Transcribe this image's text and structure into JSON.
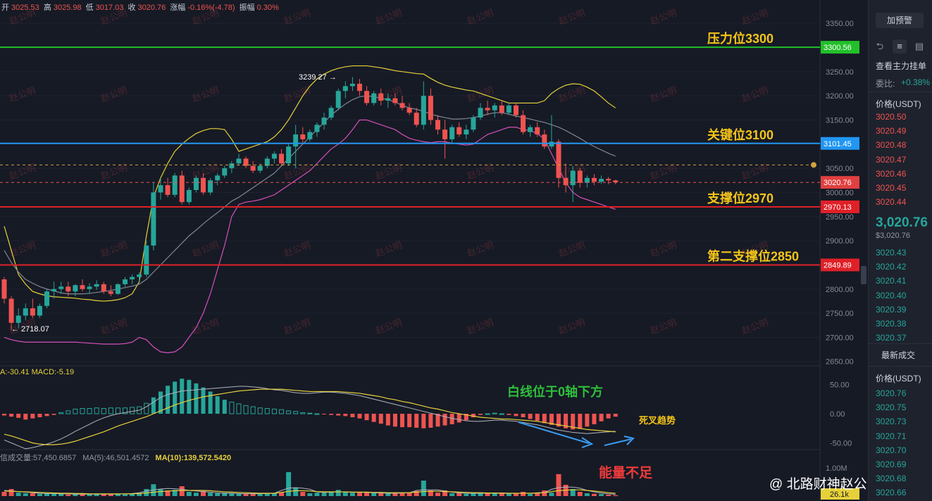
{
  "ohlc": {
    "open_label": "开",
    "open": "3025.53",
    "high_label": "高",
    "high": "3025.98",
    "low_label": "低",
    "low": "3017.03",
    "close_label": "收",
    "close": "3020.76",
    "change_label": "涨幅",
    "change": "-0.16%(-4.78)",
    "amp_label": "振幅",
    "amp": "0.30%"
  },
  "watermark": "赵公明",
  "credit": "@ 北路财神赵公明",
  "annotations": {
    "resistance": "压力位3300",
    "key": "关键位3100",
    "support": "支撑位2970",
    "support2": "第二支撑位2850",
    "white_line": "白线位于0轴下方",
    "dead_cross": "死叉趋势",
    "low_volume": "能量不足",
    "peak": "3239.27 →",
    "trough": "← 2718.07"
  },
  "colors": {
    "up": "#26a69a",
    "down": "#ef5350",
    "resistance_line": "#22c02a",
    "key_line": "#2196f3",
    "support_line": "#e02027",
    "boll_upper": "#e6d13a",
    "boll_mid": "#7f8594",
    "boll_lower": "#d450b9",
    "annotation_text": "#f5c518",
    "annotation_green": "#2fbf3b",
    "annotation_red": "#ef3b3b"
  },
  "indicators": {
    "macd_text": "A:-30.41  MACD:-5.19",
    "volume_text": "信成交量:57,450.6857",
    "ma5_text": "MA(5):46,501.4572",
    "ma10_text": "MA(10):139,572.5420"
  },
  "right_panel": {
    "button": "加预警",
    "main_orders": "查看主力挂单",
    "ratio_label": "委比:",
    "ratio_value": "+0.38%",
    "price_header": "价格(USDT)",
    "asks": [
      "3020.50",
      "3020.49",
      "3020.48",
      "3020.47",
      "3020.46",
      "3020.45",
      "3020.44"
    ],
    "last_price": "3,020.76",
    "last_price_sub": "$3,020.76",
    "bids": [
      "3020.43",
      "3020.42",
      "3020.41",
      "3020.40",
      "3020.39",
      "3020.38",
      "3020.37"
    ],
    "latest_trades": "最新成交",
    "trade_header": "价格(USDT)",
    "trades": [
      "3020.76",
      "3020.75",
      "3020.73",
      "3020.71",
      "3020.70",
      "3020.69",
      "3020.68",
      "3020.66"
    ]
  },
  "chart_data": {
    "type": "candlestick",
    "symbol_quote": "USDT",
    "price_axis": {
      "ticks": [
        3350,
        3300,
        3250,
        3200,
        3150,
        3100,
        3050,
        3000,
        2950,
        2900,
        2850,
        2800,
        2750,
        2700,
        2650
      ]
    },
    "macd_axis": {
      "ticks": [
        "50.00",
        "0.00",
        "-50.00"
      ]
    },
    "volume_axis": {
      "ticks": [
        "1.00M"
      ],
      "last_volume": "26.1k"
    },
    "levels": [
      {
        "label_key": "resistance",
        "value": 3300.56,
        "tag": "3300.56"
      },
      {
        "label_key": "key",
        "value": 3101.45,
        "tag": "3101.45"
      },
      {
        "label_key": "support",
        "value": 2970.13,
        "tag": "2970.13"
      },
      {
        "label_key": "support2",
        "value": 2849.89,
        "tag": "2849.89"
      }
    ],
    "current_price": {
      "value": 3020.76,
      "tag": "3020.76"
    },
    "alert_level": 3057,
    "peak_value": 3239.27,
    "trough_value": 2718.07,
    "candles": [
      [
        2820,
        2825,
        2770,
        2780
      ],
      [
        2780,
        2785,
        2715,
        2730
      ],
      [
        2730,
        2760,
        2718,
        2745
      ],
      [
        2745,
        2770,
        2735,
        2760
      ],
      [
        2760,
        2780,
        2740,
        2745
      ],
      [
        2745,
        2770,
        2740,
        2765
      ],
      [
        2765,
        2800,
        2760,
        2795
      ],
      [
        2795,
        2815,
        2780,
        2800
      ],
      [
        2800,
        2815,
        2790,
        2805
      ],
      [
        2805,
        2815,
        2785,
        2795
      ],
      [
        2795,
        2810,
        2785,
        2808
      ],
      [
        2808,
        2820,
        2795,
        2800
      ],
      [
        2800,
        2812,
        2790,
        2805
      ],
      [
        2805,
        2818,
        2798,
        2810
      ],
      [
        2810,
        2815,
        2790,
        2795
      ],
      [
        2795,
        2808,
        2785,
        2790
      ],
      [
        2790,
        2812,
        2788,
        2810
      ],
      [
        2810,
        2825,
        2805,
        2820
      ],
      [
        2820,
        2830,
        2810,
        2825
      ],
      [
        2825,
        2835,
        2815,
        2830
      ],
      [
        2830,
        2900,
        2825,
        2890
      ],
      [
        2890,
        3020,
        2880,
        3000
      ],
      [
        3000,
        3030,
        2985,
        3015
      ],
      [
        3015,
        3030,
        2990,
        2995
      ],
      [
        2995,
        3040,
        2990,
        3035
      ],
      [
        3035,
        3045,
        2975,
        2980
      ],
      [
        2980,
        3010,
        2975,
        3005
      ],
      [
        3005,
        3035,
        3000,
        3030
      ],
      [
        3030,
        3040,
        2995,
        3000
      ],
      [
        3000,
        3030,
        2995,
        3025
      ],
      [
        3025,
        3040,
        3015,
        3035
      ],
      [
        3035,
        3055,
        3030,
        3050
      ],
      [
        3050,
        3065,
        3040,
        3060
      ],
      [
        3060,
        3080,
        3055,
        3070
      ],
      [
        3070,
        3075,
        3050,
        3055
      ],
      [
        3055,
        3065,
        3040,
        3045
      ],
      [
        3045,
        3060,
        3040,
        3055
      ],
      [
        3055,
        3075,
        3050,
        3070
      ],
      [
        3070,
        3085,
        3060,
        3080
      ],
      [
        3080,
        3090,
        3055,
        3060
      ],
      [
        3060,
        3100,
        3055,
        3095
      ],
      [
        3095,
        3140,
        3050,
        3120
      ],
      [
        3120,
        3135,
        3100,
        3110
      ],
      [
        3110,
        3130,
        3105,
        3125
      ],
      [
        3125,
        3145,
        3115,
        3140
      ],
      [
        3140,
        3165,
        3130,
        3155
      ],
      [
        3155,
        3180,
        3150,
        3175
      ],
      [
        3175,
        3215,
        3170,
        3210
      ],
      [
        3210,
        3230,
        3195,
        3220
      ],
      [
        3220,
        3239,
        3210,
        3225
      ],
      [
        3225,
        3235,
        3200,
        3210
      ],
      [
        3210,
        3220,
        3180,
        3185
      ],
      [
        3185,
        3210,
        3180,
        3205
      ],
      [
        3205,
        3215,
        3180,
        3190
      ],
      [
        3190,
        3205,
        3175,
        3195
      ],
      [
        3195,
        3205,
        3180,
        3185
      ],
      [
        3185,
        3200,
        3170,
        3175
      ],
      [
        3175,
        3185,
        3160,
        3165
      ],
      [
        3165,
        3175,
        3135,
        3140
      ],
      [
        3140,
        3230,
        3130,
        3200
      ],
      [
        3200,
        3215,
        3140,
        3150
      ],
      [
        3150,
        3160,
        3120,
        3130
      ],
      [
        3130,
        3150,
        3070,
        3110
      ],
      [
        3110,
        3140,
        3100,
        3135
      ],
      [
        3135,
        3145,
        3115,
        3120
      ],
      [
        3120,
        3140,
        3110,
        3130
      ],
      [
        3130,
        3160,
        3125,
        3155
      ],
      [
        3155,
        3185,
        3150,
        3175
      ],
      [
        3175,
        3190,
        3160,
        3170
      ],
      [
        3170,
        3185,
        3155,
        3180
      ],
      [
        3180,
        3190,
        3160,
        3165
      ],
      [
        3165,
        3185,
        3160,
        3180
      ],
      [
        3180,
        3185,
        3155,
        3160
      ],
      [
        3160,
        3170,
        3120,
        3125
      ],
      [
        3125,
        3140,
        3115,
        3135
      ],
      [
        3135,
        3145,
        3115,
        3120
      ],
      [
        3120,
        3130,
        3090,
        3095
      ],
      [
        3095,
        3160,
        3090,
        3105
      ],
      [
        3105,
        3110,
        3010,
        3030
      ],
      [
        3030,
        3060,
        3000,
        3015
      ],
      [
        3015,
        3055,
        2980,
        3045
      ],
      [
        3045,
        3050,
        3010,
        3020
      ],
      [
        3020,
        3035,
        3010,
        3030
      ],
      [
        3030,
        3038,
        3015,
        3022
      ],
      [
        3022,
        3035,
        3018,
        3028
      ],
      [
        3028,
        3032,
        3017,
        3025
      ],
      [
        3025,
        3026,
        3017,
        3021
      ]
    ],
    "bollinger": {
      "upper": [
        2930,
        2880,
        2830,
        2810,
        2795,
        2790,
        2786,
        2784,
        2783,
        2782,
        2781,
        2779,
        2778,
        2776,
        2775,
        2776,
        2778,
        2782,
        2790,
        2815,
        2910,
        2990,
        3030,
        3060,
        3085,
        3100,
        3112,
        3122,
        3128,
        3132,
        3132,
        3130,
        3110,
        3085,
        3090,
        3095,
        3100,
        3105,
        3115,
        3130,
        3150,
        3175,
        3200,
        3220,
        3235,
        3245,
        3252,
        3257,
        3260,
        3262,
        3262,
        3262,
        3260,
        3258,
        3255,
        3252,
        3250,
        3248,
        3246,
        3245,
        3236,
        3228,
        3222,
        3218,
        3215,
        3212,
        3210,
        3205,
        3200,
        3195,
        3190,
        3185,
        3185,
        3185,
        3185,
        3185,
        3190,
        3205,
        3215,
        3222,
        3225,
        3224,
        3218,
        3210,
        3198,
        3185,
        3175
      ],
      "middle": [
        2880,
        2855,
        2835,
        2820,
        2812,
        2805,
        2800,
        2796,
        2792,
        2790,
        2790,
        2790,
        2791,
        2793,
        2795,
        2797,
        2800,
        2803,
        2806,
        2810,
        2820,
        2835,
        2850,
        2865,
        2880,
        2895,
        2910,
        2922,
        2935,
        2947,
        2958,
        2970,
        2982,
        2990,
        3000,
        3010,
        3020,
        3030,
        3040,
        3055,
        3070,
        3085,
        3100,
        3115,
        3130,
        3145,
        3160,
        3172,
        3183,
        3192,
        3198,
        3200,
        3198,
        3195,
        3192,
        3187,
        3180,
        3175,
        3172,
        3168,
        3162,
        3158,
        3155,
        3152,
        3152,
        3153,
        3155,
        3158,
        3162,
        3165,
        3165,
        3162,
        3158,
        3155,
        3152,
        3148,
        3145,
        3140,
        3135,
        3128,
        3120,
        3112,
        3103,
        3095,
        3088,
        3081,
        3075
      ],
      "lower": [
        2700,
        2695,
        2692,
        2690,
        2690,
        2690,
        2690,
        2690,
        2690,
        2690,
        2690,
        2689,
        2688,
        2687,
        2686,
        2686,
        2686,
        2687,
        2690,
        2700,
        2695,
        2680,
        2670,
        2668,
        2670,
        2680,
        2700,
        2720,
        2750,
        2790,
        2840,
        2890,
        2950,
        2975,
        2980,
        2982,
        2985,
        2990,
        2995,
        3005,
        3015,
        3025,
        3035,
        3045,
        3060,
        3075,
        3090,
        3100,
        3112,
        3130,
        3150,
        3150,
        3145,
        3140,
        3135,
        3130,
        3120,
        3112,
        3108,
        3105,
        3103,
        3105,
        3105,
        3102,
        3100,
        3098,
        3100,
        3110,
        3120,
        3125,
        3130,
        3135,
        3135,
        3130,
        3128,
        3122,
        3110,
        3080,
        3050,
        3020,
        3000,
        2990,
        2985,
        2980,
        2975,
        2970,
        2965
      ]
    },
    "macd": {
      "hist": [
        -3,
        -5,
        -7,
        -10,
        -8,
        -6,
        -4,
        -2,
        2,
        5,
        8,
        9,
        9,
        10,
        9,
        10,
        10,
        10,
        11,
        12,
        18,
        28,
        38,
        48,
        55,
        60,
        58,
        52,
        45,
        38,
        30,
        24,
        20,
        17,
        14,
        12,
        10,
        9,
        8,
        7,
        5,
        4,
        2,
        1,
        0,
        -1,
        -2,
        -3,
        -4,
        -6,
        -8,
        -11,
        -14,
        -17,
        -20,
        -22,
        -23,
        -23,
        -24,
        -25,
        -24,
        -22,
        -20,
        -18,
        -15,
        -11,
        -6,
        -2,
        0,
        1,
        0,
        -2,
        -4,
        -6,
        -9,
        -12,
        -16,
        -19,
        -22,
        -25,
        -27,
        -26,
        -22,
        -18,
        -13,
        -8,
        -5
      ],
      "dif": [
        -45,
        -50,
        -55,
        -60,
        -58,
        -55,
        -52,
        -48,
        -43,
        -37,
        -30,
        -24,
        -18,
        -12,
        -7,
        -3,
        0,
        2,
        4,
        6,
        12,
        20,
        28,
        33,
        36,
        39,
        40,
        41,
        42,
        43,
        44,
        45,
        46,
        47,
        47,
        46,
        45,
        43,
        41,
        40,
        38,
        36,
        35,
        35,
        36,
        37,
        37,
        36,
        35,
        33,
        31,
        28,
        25,
        22,
        19,
        16,
        13,
        10,
        7,
        4,
        1,
        -2,
        -5,
        -8,
        -10,
        -12,
        -13,
        -13,
        -12,
        -11,
        -11,
        -12,
        -13,
        -15,
        -17,
        -19,
        -22,
        -25,
        -28,
        -30,
        -32,
        -33,
        -34,
        -33,
        -32,
        -31,
        -30
      ],
      "dea": [
        -35,
        -38,
        -42,
        -46,
        -50,
        -52,
        -53,
        -53,
        -52,
        -50,
        -47,
        -43,
        -39,
        -35,
        -31,
        -26,
        -21,
        -17,
        -13,
        -9,
        -5,
        0,
        5,
        10,
        15,
        19,
        23,
        26,
        29,
        31,
        33,
        35,
        37,
        39,
        40,
        41,
        42,
        42,
        42,
        42,
        41,
        40,
        39,
        38,
        38,
        38,
        38,
        38,
        37,
        36,
        35,
        33,
        31,
        29,
        26,
        24,
        21,
        19,
        16,
        13,
        10,
        8,
        5,
        2,
        0,
        -2,
        -4,
        -6,
        -7,
        -8,
        -9,
        -9,
        -10,
        -11,
        -12,
        -13,
        -15,
        -17,
        -19,
        -21,
        -23,
        -25,
        -27,
        -28,
        -29,
        -30,
        -31
      ]
    },
    "volume": {
      "values": [
        0.15,
        0.25,
        0.12,
        0.1,
        0.1,
        0.08,
        0.09,
        0.08,
        0.1,
        0.06,
        0.07,
        0.06,
        0.07,
        0.09,
        0.08,
        0.06,
        0.07,
        0.06,
        0.08,
        0.1,
        0.25,
        0.42,
        0.25,
        0.2,
        0.22,
        0.35,
        0.15,
        0.12,
        0.18,
        0.12,
        0.1,
        0.12,
        0.1,
        0.08,
        0.09,
        0.07,
        0.07,
        0.08,
        0.1,
        0.14,
        0.85,
        0.3,
        0.15,
        0.1,
        0.12,
        0.12,
        0.15,
        0.22,
        0.15,
        0.12,
        0.12,
        0.15,
        0.12,
        0.1,
        0.09,
        0.1,
        0.12,
        0.11,
        0.18,
        0.55,
        0.2,
        0.12,
        0.2,
        0.1,
        0.1,
        0.08,
        0.1,
        0.12,
        0.1,
        0.09,
        0.1,
        0.08,
        0.1,
        0.15,
        0.08,
        0.1,
        0.2,
        0.12,
        0.78,
        0.4,
        0.25,
        0.15,
        0.1,
        0.08,
        0.07,
        0.05,
        0.03
      ],
      "ma_short": [
        0.2,
        0.18,
        0.16,
        0.14,
        0.12,
        0.1,
        0.09,
        0.09,
        0.08,
        0.08,
        0.07,
        0.07,
        0.07,
        0.07,
        0.07,
        0.07,
        0.07,
        0.08,
        0.09,
        0.12,
        0.18,
        0.22,
        0.25,
        0.27,
        0.26,
        0.24,
        0.2,
        0.18,
        0.16,
        0.14,
        0.12,
        0.1,
        0.1,
        0.09,
        0.08,
        0.08,
        0.08,
        0.09,
        0.1,
        0.2,
        0.28,
        0.3,
        0.28,
        0.24,
        0.15,
        0.13,
        0.14,
        0.15,
        0.15,
        0.14,
        0.13,
        0.13,
        0.12,
        0.11,
        0.1,
        0.1,
        0.11,
        0.12,
        0.2,
        0.22,
        0.22,
        0.22,
        0.18,
        0.14,
        0.11,
        0.1,
        0.1,
        0.1,
        0.1,
        0.1,
        0.1,
        0.09,
        0.1,
        0.1,
        0.1,
        0.12,
        0.12,
        0.24,
        0.3,
        0.32,
        0.32,
        0.28,
        0.2,
        0.15,
        0.1,
        0.08,
        0.06
      ],
      "ma_long": [
        0.18,
        0.17,
        0.16,
        0.15,
        0.14,
        0.13,
        0.12,
        0.11,
        0.1,
        0.1,
        0.09,
        0.09,
        0.08,
        0.08,
        0.08,
        0.08,
        0.08,
        0.08,
        0.08,
        0.09,
        0.11,
        0.14,
        0.16,
        0.18,
        0.19,
        0.2,
        0.2,
        0.2,
        0.2,
        0.19,
        0.17,
        0.15,
        0.14,
        0.13,
        0.12,
        0.11,
        0.1,
        0.1,
        0.1,
        0.13,
        0.17,
        0.19,
        0.19,
        0.18,
        0.16,
        0.15,
        0.15,
        0.15,
        0.15,
        0.14,
        0.14,
        0.14,
        0.13,
        0.13,
        0.12,
        0.12,
        0.12,
        0.12,
        0.14,
        0.16,
        0.17,
        0.17,
        0.16,
        0.15,
        0.14,
        0.13,
        0.12,
        0.12,
        0.11,
        0.11,
        0.11,
        0.1,
        0.1,
        0.1,
        0.1,
        0.11,
        0.12,
        0.16,
        0.19,
        0.21,
        0.22,
        0.22,
        0.2,
        0.18,
        0.15,
        0.12,
        0.1
      ]
    }
  }
}
